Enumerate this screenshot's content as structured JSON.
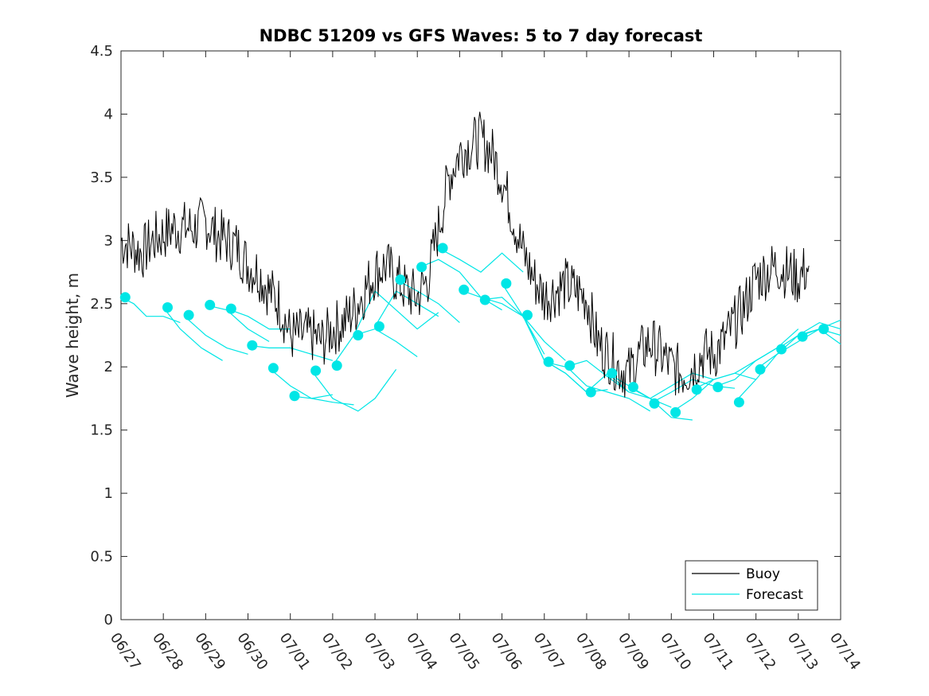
{
  "chart_data": {
    "type": "line",
    "title": "NDBC 51209 vs GFS Waves: 5 to 7 day forecast",
    "xlabel": "",
    "ylabel": "Wave height, m",
    "x_tick_labels": [
      "06/27",
      "06/28",
      "06/29",
      "06/30",
      "07/01",
      "07/02",
      "07/03",
      "07/04",
      "07/05",
      "07/06",
      "07/07",
      "07/08",
      "07/09",
      "07/10",
      "07/11",
      "07/12",
      "07/13",
      "07/14"
    ],
    "y_tick_labels": [
      "0",
      "0.5",
      "1",
      "1.5",
      "2",
      "2.5",
      "3",
      "3.5",
      "4",
      "4.5"
    ],
    "xlim_days": [
      0,
      17
    ],
    "ylim": [
      0,
      4.5
    ],
    "legend": {
      "position": "bottom-right",
      "entries": [
        "Buoy",
        "Forecast"
      ]
    },
    "colors": {
      "buoy": "#000000",
      "forecast": "#00e6e6",
      "marker": "#00e6e6"
    },
    "series": [
      {
        "name": "Buoy",
        "x_days": [
          0,
          0.25,
          0.5,
          0.75,
          1,
          1.25,
          1.5,
          1.75,
          2,
          2.25,
          2.5,
          2.75,
          3,
          3.25,
          3.5,
          3.75,
          4,
          4.25,
          4.5,
          4.75,
          5,
          5.25,
          5.5,
          5.75,
          6,
          6.25,
          6.5,
          6.75,
          7,
          7.25,
          7.5,
          7.75,
          8,
          8.25,
          8.5,
          8.75,
          9,
          9.25,
          9.5,
          9.75,
          10,
          10.25,
          10.5,
          10.75,
          11,
          11.25,
          11.5,
          11.75,
          12,
          12.25,
          12.5,
          12.75,
          13,
          13.25,
          13.5,
          13.75,
          14,
          14.25,
          14.5,
          14.75,
          15,
          15.25,
          15.5,
          15.75,
          16,
          16.25
        ],
        "values": [
          3.0,
          2.95,
          2.9,
          3.0,
          3.05,
          3.1,
          3.1,
          3.1,
          3.15,
          3.05,
          3.0,
          2.95,
          2.8,
          2.75,
          2.6,
          2.5,
          2.25,
          2.25,
          2.25,
          2.2,
          2.3,
          2.35,
          2.45,
          2.6,
          2.75,
          2.8,
          2.7,
          2.6,
          2.55,
          2.7,
          3.1,
          3.5,
          3.7,
          3.75,
          3.8,
          3.7,
          3.5,
          3.2,
          2.9,
          2.7,
          2.55,
          2.6,
          2.65,
          2.6,
          2.55,
          2.2,
          2.1,
          2.0,
          1.95,
          2.1,
          2.2,
          2.1,
          2.0,
          1.95,
          2.0,
          2.1,
          2.1,
          2.2,
          2.35,
          2.5,
          2.7,
          2.75,
          2.8,
          2.75,
          2.7,
          2.8
        ]
      },
      {
        "name": "Forecast",
        "segments": [
          {
            "x_days": [
              0,
              0.3,
              0.6,
              1.0,
              1.4
            ],
            "values": [
              2.55,
              2.5,
              2.4,
              2.4,
              2.35
            ]
          },
          {
            "x_days": [
              1.0,
              1.4,
              1.9,
              2.4
            ],
            "values": [
              2.47,
              2.3,
              2.15,
              2.05
            ]
          },
          {
            "x_days": [
              1.5,
              2.0,
              2.5,
              3.0
            ],
            "values": [
              2.4,
              2.25,
              2.15,
              2.1
            ]
          },
          {
            "x_days": [
              2.0,
              2.5,
              3.0,
              3.5
            ],
            "values": [
              2.49,
              2.45,
              2.3,
              2.2
            ]
          },
          {
            "x_days": [
              2.5,
              3.0,
              3.5,
              4.0
            ],
            "values": [
              2.46,
              2.4,
              2.3,
              2.3
            ]
          },
          {
            "x_days": [
              3.0,
              3.5,
              4.0,
              4.5,
              5.0
            ],
            "values": [
              2.17,
              2.15,
              2.15,
              2.1,
              2.05
            ]
          },
          {
            "x_days": [
              3.5,
              4.0,
              4.5,
              5.0,
              5.5
            ],
            "values": [
              1.99,
              1.85,
              1.75,
              1.72,
              1.7
            ]
          },
          {
            "x_days": [
              4.0,
              4.5,
              5.0
            ],
            "values": [
              1.77,
              1.75,
              1.78
            ]
          },
          {
            "x_days": [
              4.5,
              5.0,
              5.3,
              5.6,
              6.0,
              6.5
            ],
            "values": [
              1.97,
              1.75,
              1.7,
              1.65,
              1.75,
              1.98
            ]
          },
          {
            "x_days": [
              5.0,
              5.5,
              6.0,
              6.5,
              7.0
            ],
            "values": [
              2.01,
              2.25,
              2.3,
              2.2,
              2.08
            ]
          },
          {
            "x_days": [
              5.5,
              6.0,
              6.5,
              7.0,
              7.5
            ],
            "values": [
              2.25,
              2.6,
              2.45,
              2.3,
              2.43
            ]
          },
          {
            "x_days": [
              6.0,
              6.5,
              7.0,
              7.5
            ],
            "values": [
              2.32,
              2.6,
              2.5,
              2.4
            ]
          },
          {
            "x_days": [
              6.5,
              7.0,
              7.5,
              8.0
            ],
            "values": [
              2.69,
              2.6,
              2.5,
              2.35
            ]
          },
          {
            "x_days": [
              7.0,
              7.5,
              8.0,
              8.5,
              9.0
            ],
            "values": [
              2.78,
              2.85,
              2.75,
              2.55,
              2.45
            ]
          },
          {
            "x_days": [
              7.5,
              8.0,
              8.5,
              9.0,
              9.5
            ],
            "values": [
              2.94,
              2.85,
              2.75,
              2.9,
              2.75
            ]
          },
          {
            "x_days": [
              8.0,
              8.5,
              9.0,
              9.5,
              10.0
            ],
            "values": [
              2.61,
              2.55,
              2.5,
              2.4,
              2.1
            ]
          },
          {
            "x_days": [
              8.5,
              9.0,
              9.5,
              10.0,
              10.5
            ],
            "values": [
              2.53,
              2.55,
              2.4,
              2.2,
              2.05
            ]
          },
          {
            "x_days": [
              9.0,
              9.5,
              10.0,
              10.5,
              11.0
            ],
            "values": [
              2.66,
              2.4,
              2.05,
              1.95,
              1.8
            ]
          },
          {
            "x_days": [
              9.5,
              10.0,
              10.5,
              11.0,
              11.5
            ],
            "values": [
              2.41,
              2.05,
              1.95,
              1.8,
              1.82
            ]
          },
          {
            "x_days": [
              10.0,
              10.5,
              11.0,
              11.5,
              12.0
            ],
            "values": [
              2.04,
              2.0,
              2.05,
              1.92,
              1.8
            ]
          },
          {
            "x_days": [
              10.5,
              11.0,
              11.5,
              12.0,
              12.5
            ],
            "values": [
              2.01,
              1.85,
              1.8,
              1.75,
              1.65
            ]
          },
          {
            "x_days": [
              11.0,
              11.5,
              12.0,
              12.5,
              13.0
            ],
            "values": [
              1.8,
              1.95,
              1.8,
              1.75,
              1.68
            ]
          },
          {
            "x_days": [
              11.5,
              12.0,
              12.5,
              13.0,
              13.5
            ],
            "values": [
              1.95,
              1.85,
              1.75,
              1.6,
              1.58
            ]
          },
          {
            "x_days": [
              12.0,
              12.5,
              13.0,
              13.5,
              14.0
            ],
            "values": [
              1.84,
              1.75,
              1.85,
              1.95,
              1.9
            ]
          },
          {
            "x_days": [
              12.5,
              13.0,
              13.5,
              14.0,
              14.5
            ],
            "values": [
              1.71,
              1.8,
              1.9,
              1.85,
              1.83
            ]
          },
          {
            "x_days": [
              13.0,
              13.5,
              14.0,
              14.5,
              15.0
            ],
            "values": [
              1.64,
              1.75,
              1.9,
              1.95,
              1.9
            ]
          },
          {
            "x_days": [
              13.5,
              14.0,
              14.5,
              15.0,
              15.5
            ],
            "values": [
              1.82,
              1.9,
              1.95,
              2.05,
              2.15
            ]
          },
          {
            "x_days": [
              14.0,
              14.5,
              15.0,
              15.5,
              16.0
            ],
            "values": [
              1.84,
              1.9,
              2.05,
              2.15,
              2.3
            ]
          },
          {
            "x_days": [
              14.5,
              15.0,
              15.5,
              16.0,
              16.5
            ],
            "values": [
              1.72,
              1.9,
              2.1,
              2.25,
              2.3
            ]
          },
          {
            "x_days": [
              15.0,
              15.5,
              16.0,
              16.5,
              17.0
            ],
            "values": [
              1.98,
              2.1,
              2.2,
              2.3,
              2.25
            ]
          },
          {
            "x_days": [
              15.5,
              16.0,
              16.5,
              17.0
            ],
            "values": [
              2.14,
              2.25,
              2.35,
              2.3
            ]
          },
          {
            "x_days": [
              16.0,
              16.5,
              17.0
            ],
            "values": [
              2.24,
              2.3,
              2.37
            ]
          },
          {
            "x_days": [
              16.5,
              17.0
            ],
            "values": [
              2.3,
              2.18
            ]
          }
        ],
        "markers": {
          "x_days": [
            0.1,
            1.1,
            1.6,
            2.1,
            2.6,
            3.1,
            3.6,
            4.1,
            4.6,
            5.1,
            5.6,
            6.1,
            6.6,
            7.1,
            7.6,
            8.1,
            8.6,
            9.1,
            9.6,
            10.1,
            10.6,
            11.1,
            11.6,
            12.1,
            12.6,
            13.1,
            13.6,
            14.1,
            14.6,
            15.1,
            15.6,
            16.1,
            16.6
          ],
          "values": [
            2.55,
            2.47,
            2.41,
            2.49,
            2.46,
            2.17,
            1.99,
            1.77,
            1.97,
            2.01,
            2.25,
            2.32,
            2.69,
            2.79,
            2.94,
            2.61,
            2.53,
            2.66,
            2.41,
            2.04,
            2.01,
            1.8,
            1.95,
            1.84,
            1.71,
            1.64,
            1.82,
            1.84,
            1.72,
            1.98,
            2.14,
            2.24,
            2.3
          ]
        }
      }
    ]
  }
}
